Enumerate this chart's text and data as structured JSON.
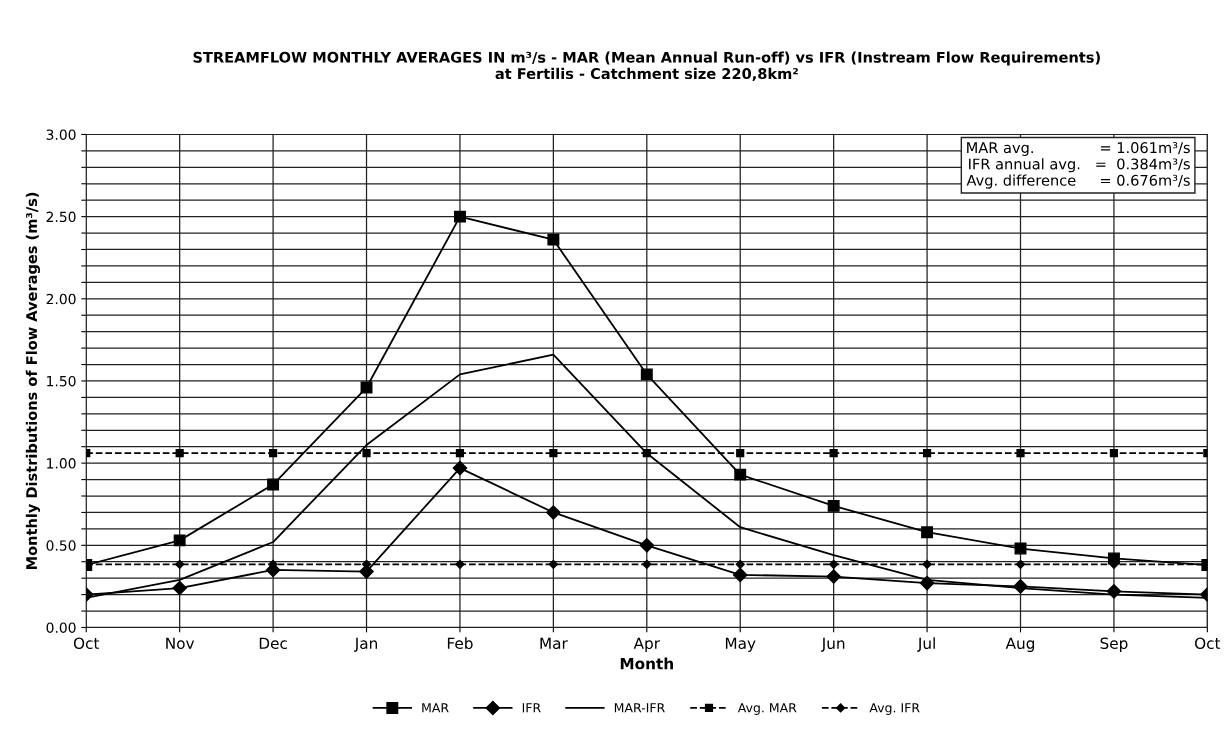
{
  "chart_data": {
    "type": "line",
    "title": "STREAMFLOW MONTHLY AVERAGES IN m³/s - MAR (Mean Annual Run-off) vs IFR (Instream Flow Requirements)\nat Fertilis - Catchment size 220,8km²",
    "xlabel": "Month",
    "ylabel": "Monthly Distributions of Flow Averages (m³/s)",
    "categories": [
      "Oct",
      "Nov",
      "Dec",
      "Jan",
      "Feb",
      "Mar",
      "Apr",
      "May",
      "Jun",
      "Jul",
      "Aug",
      "Sep",
      "Oct"
    ],
    "series": [
      {
        "name": "MAR",
        "color": "#000000",
        "marker": "square",
        "line_style": "solid",
        "values": [
          0.38,
          0.53,
          0.87,
          1.46,
          2.5,
          2.36,
          1.54,
          0.93,
          0.74,
          0.58,
          0.48,
          0.42,
          0.38
        ]
      },
      {
        "name": "IFR",
        "color": "#000000",
        "marker": "diamond",
        "line_style": "solid",
        "values": [
          0.2,
          0.24,
          0.35,
          0.34,
          0.97,
          0.7,
          0.5,
          0.32,
          0.31,
          0.27,
          0.25,
          0.22,
          0.2
        ]
      },
      {
        "name": "MAR-IFR",
        "color": "#000000",
        "marker": "none",
        "line_style": "solid",
        "values": [
          0.18,
          0.29,
          0.52,
          1.11,
          1.54,
          1.66,
          1.06,
          0.61,
          0.44,
          0.29,
          0.24,
          0.2,
          0.18
        ]
      },
      {
        "name": "Avg. MAR",
        "color": "#000000",
        "marker": "square",
        "line_style": "dashed",
        "values": [
          1.061,
          1.061,
          1.061,
          1.061,
          1.061,
          1.061,
          1.061,
          1.061,
          1.061,
          1.061,
          1.061,
          1.061,
          1.061
        ]
      },
      {
        "name": "Avg. IFR",
        "color": "#000000",
        "marker": "diamond",
        "line_style": "dashed",
        "values": [
          0.384,
          0.384,
          0.384,
          0.384,
          0.384,
          0.384,
          0.384,
          0.384,
          0.384,
          0.384,
          0.384,
          0.384,
          0.384
        ]
      }
    ],
    "ylim": [
      0,
      3
    ],
    "yticks": [
      {
        "value": 0,
        "label": "0.00"
      },
      {
        "value": 0.1,
        "label": null
      },
      {
        "value": 0.2,
        "label": null
      },
      {
        "value": 0.3,
        "label": null
      },
      {
        "value": 0.4,
        "label": null
      },
      {
        "value": 0.5,
        "label": "0.50"
      },
      {
        "value": 0.6,
        "label": null
      },
      {
        "value": 0.7,
        "label": null
      },
      {
        "value": 0.8,
        "label": null
      },
      {
        "value": 0.9,
        "label": null
      },
      {
        "value": 1.0,
        "label": "1.00"
      },
      {
        "value": 1.1,
        "label": null
      },
      {
        "value": 1.2,
        "label": null
      },
      {
        "value": 1.3,
        "label": null
      },
      {
        "value": 1.4,
        "label": null
      },
      {
        "value": 1.5,
        "label": "1.50"
      },
      {
        "value": 1.6,
        "label": null
      },
      {
        "value": 1.7,
        "label": null
      },
      {
        "value": 1.8,
        "label": null
      },
      {
        "value": 1.9,
        "label": null
      },
      {
        "value": 2.0,
        "label": "2.00"
      },
      {
        "value": 2.1,
        "label": null
      },
      {
        "value": 2.2,
        "label": null
      },
      {
        "value": 2.3,
        "label": null
      },
      {
        "value": 2.4,
        "label": null
      },
      {
        "value": 2.5,
        "label": "2.50"
      },
      {
        "value": 2.6,
        "label": null
      },
      {
        "value": 2.7,
        "label": null
      },
      {
        "value": 2.8,
        "label": null
      },
      {
        "value": 2.9,
        "label": null
      },
      {
        "value": 3.0,
        "label": "3.00"
      }
    ],
    "grid": true,
    "legend": "bottom",
    "annotations": [
      "MAR avg.              = 1.061m³/s\nIFR annual avg.   =  0.384m³/s\nAvg. difference     = 0.676m³/s"
    ]
  }
}
